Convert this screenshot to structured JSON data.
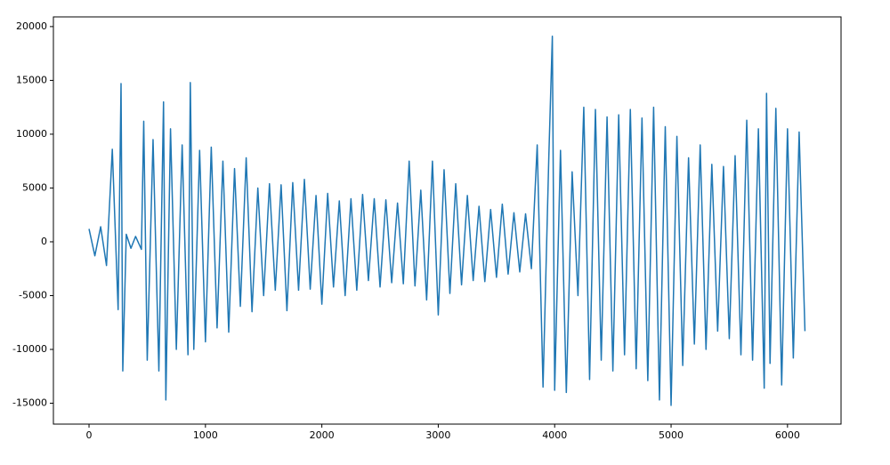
{
  "chart_data": {
    "type": "line",
    "x": [
      0,
      50,
      100,
      150,
      200,
      250,
      275,
      290,
      320,
      360,
      400,
      450,
      470,
      500,
      550,
      600,
      640,
      660,
      700,
      750,
      800,
      850,
      870,
      900,
      950,
      1000,
      1050,
      1100,
      1150,
      1200,
      1250,
      1300,
      1350,
      1400,
      1450,
      1500,
      1550,
      1600,
      1650,
      1700,
      1750,
      1800,
      1850,
      1900,
      1950,
      2000,
      2050,
      2100,
      2150,
      2200,
      2250,
      2300,
      2350,
      2400,
      2450,
      2500,
      2550,
      2600,
      2650,
      2700,
      2750,
      2800,
      2850,
      2900,
      2950,
      3000,
      3050,
      3100,
      3150,
      3200,
      3250,
      3300,
      3350,
      3400,
      3450,
      3500,
      3550,
      3600,
      3650,
      3700,
      3750,
      3800,
      3850,
      3900,
      3950,
      3980,
      4000,
      4050,
      4100,
      4150,
      4200,
      4250,
      4300,
      4350,
      4400,
      4450,
      4500,
      4550,
      4600,
      4650,
      4700,
      4750,
      4800,
      4850,
      4900,
      4950,
      5000,
      5050,
      5100,
      5150,
      5200,
      5250,
      5300,
      5350,
      5400,
      5450,
      5500,
      5550,
      5600,
      5650,
      5700,
      5750,
      5800,
      5820,
      5850,
      5900,
      5950,
      6000,
      6050,
      6100,
      6150
    ],
    "series": [
      {
        "color": "#1f77b4",
        "values": [
          1200,
          -1300,
          1400,
          -2200,
          8600,
          -6300,
          14700,
          -12000,
          700,
          -600,
          500,
          -700,
          11200,
          -11000,
          9500,
          -12000,
          13000,
          -14700,
          10500,
          -10000,
          9000,
          -10500,
          14800,
          -10000,
          8500,
          -9300,
          8800,
          -8000,
          7500,
          -8400,
          6800,
          -6000,
          7800,
          -6500,
          5000,
          -5000,
          5400,
          -4500,
          5300,
          -6400,
          5500,
          -4500,
          5800,
          -4400,
          4300,
          -5800,
          4500,
          -4200,
          3800,
          -5000,
          4000,
          -4500,
          4400,
          -3600,
          4000,
          -4200,
          3900,
          -3800,
          3600,
          -3900,
          7500,
          -4100,
          4800,
          -5400,
          7500,
          -6800,
          6700,
          -4800,
          5400,
          -4000,
          4300,
          -3600,
          3300,
          -3700,
          3000,
          -3300,
          3500,
          -3000,
          2700,
          -2800,
          2600,
          -2500,
          9000,
          -13500,
          8000,
          19100,
          -13800,
          8500,
          -14000,
          6500,
          -5000,
          12500,
          -12800,
          12300,
          -11000,
          11600,
          -12000,
          11800,
          -10500,
          12300,
          -11800,
          11500,
          -12900,
          12500,
          -14700,
          10700,
          -15200,
          9800,
          -11500,
          7800,
          -9500,
          9000,
          -10000,
          7200,
          -8300,
          7000,
          -9000,
          8000,
          -10500,
          11300,
          -11000,
          10500,
          -13600,
          13800,
          -11300,
          12400,
          -13300,
          10500,
          -10800,
          10200,
          -8300
        ]
      }
    ],
    "xlim": [
      -306,
      6460
    ],
    "ylim": [
      -16940,
      20900
    ],
    "xticks": [
      0,
      1000,
      2000,
      3000,
      4000,
      5000,
      6000
    ],
    "yticks": [
      -15000,
      -10000,
      -5000,
      0,
      5000,
      10000,
      15000,
      20000
    ]
  }
}
